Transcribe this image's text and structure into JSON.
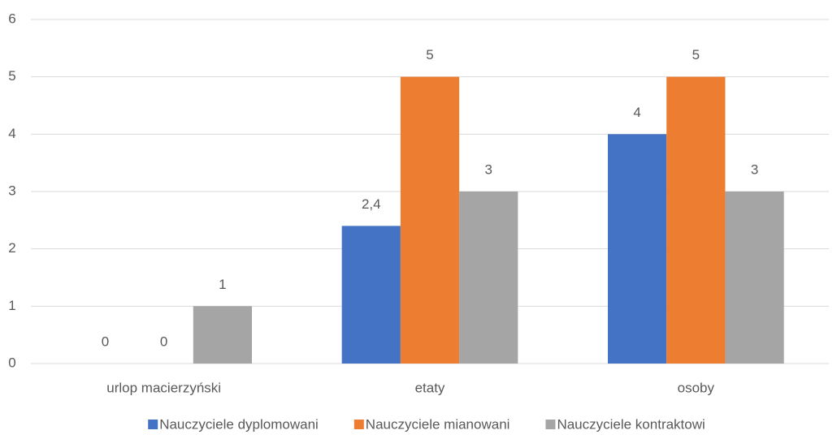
{
  "chart_data": {
    "type": "bar",
    "categories": [
      "urlop macierzyński",
      "etaty",
      "osoby"
    ],
    "series": [
      {
        "name": "Nauczyciele dyplomowani",
        "color": "#4472c4",
        "values": [
          0,
          2.4,
          4
        ],
        "value_labels": [
          "0",
          "2,4",
          "4"
        ]
      },
      {
        "name": "Nauczyciele mianowani",
        "color": "#ed7d31",
        "values": [
          0,
          5,
          5
        ]
      },
      {
        "name": "Nauczyciele kontraktowi",
        "color": "#a5a5a5",
        "values": [
          1,
          3,
          3
        ]
      }
    ],
    "ylim": [
      0,
      6
    ],
    "yticks": [
      0,
      1,
      2,
      3,
      4,
      5,
      6
    ],
    "grid": true,
    "legend": "bottom"
  }
}
